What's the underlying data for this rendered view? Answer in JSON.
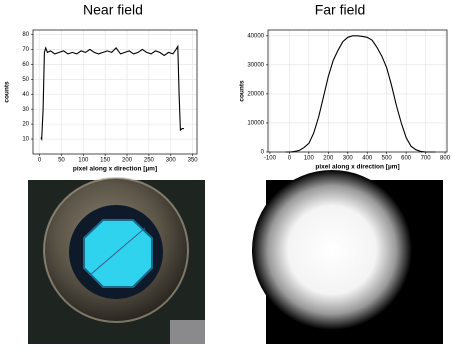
{
  "chart_data": [
    {
      "type": "line",
      "title": "Near field",
      "ylabel": "counts",
      "xlabel": "pixel along x direction [µm]",
      "color": "#000000",
      "x": [
        3,
        5,
        8,
        11,
        14,
        18,
        25,
        35,
        45,
        55,
        65,
        75,
        85,
        95,
        105,
        115,
        125,
        135,
        145,
        155,
        165,
        175,
        185,
        195,
        205,
        215,
        225,
        235,
        245,
        255,
        265,
        275,
        285,
        295,
        305,
        312,
        316,
        319,
        322,
        326,
        330
      ],
      "values": [
        11,
        10,
        30,
        68,
        71,
        68,
        69,
        67,
        68,
        69,
        67,
        68,
        67,
        69,
        68,
        70,
        68,
        67,
        68,
        69,
        68,
        71,
        67,
        68,
        69,
        67,
        68,
        70,
        68,
        67,
        69,
        68,
        66,
        68,
        67,
        70,
        72,
        40,
        16,
        17,
        17
      ],
      "xlim": [
        -15,
        360
      ],
      "ylim": [
        0,
        83
      ],
      "xticks": [
        0,
        50,
        100,
        150,
        200,
        250,
        300,
        350
      ],
      "yticks": [
        10,
        20,
        30,
        40,
        50,
        60,
        70,
        80
      ],
      "grid": true
    },
    {
      "type": "line",
      "title": "Far field",
      "ylabel": "counts",
      "xlabel": "pixel along x direction [µm]",
      "color": "#000000",
      "x": [
        -20,
        0,
        20,
        50,
        75,
        100,
        125,
        150,
        175,
        200,
        225,
        250,
        275,
        300,
        325,
        350,
        375,
        400,
        425,
        450,
        475,
        500,
        525,
        550,
        575,
        600,
        625,
        650,
        675,
        700,
        750
      ],
      "values": [
        0,
        0,
        100,
        500,
        1500,
        3000,
        6500,
        12000,
        19000,
        26000,
        31500,
        35000,
        38000,
        39500,
        40000,
        40000,
        39800,
        39500,
        38500,
        36000,
        33000,
        29000,
        23000,
        16000,
        10000,
        5000,
        2000,
        800,
        200,
        0,
        0
      ],
      "xlim": [
        -110,
        810
      ],
      "ylim": [
        0,
        42000
      ],
      "xticks": [
        -100,
        0,
        100,
        200,
        300,
        400,
        500,
        600,
        700,
        800
      ],
      "yticks": [
        0,
        10000,
        20000,
        30000,
        40000
      ],
      "grid": true
    }
  ]
}
